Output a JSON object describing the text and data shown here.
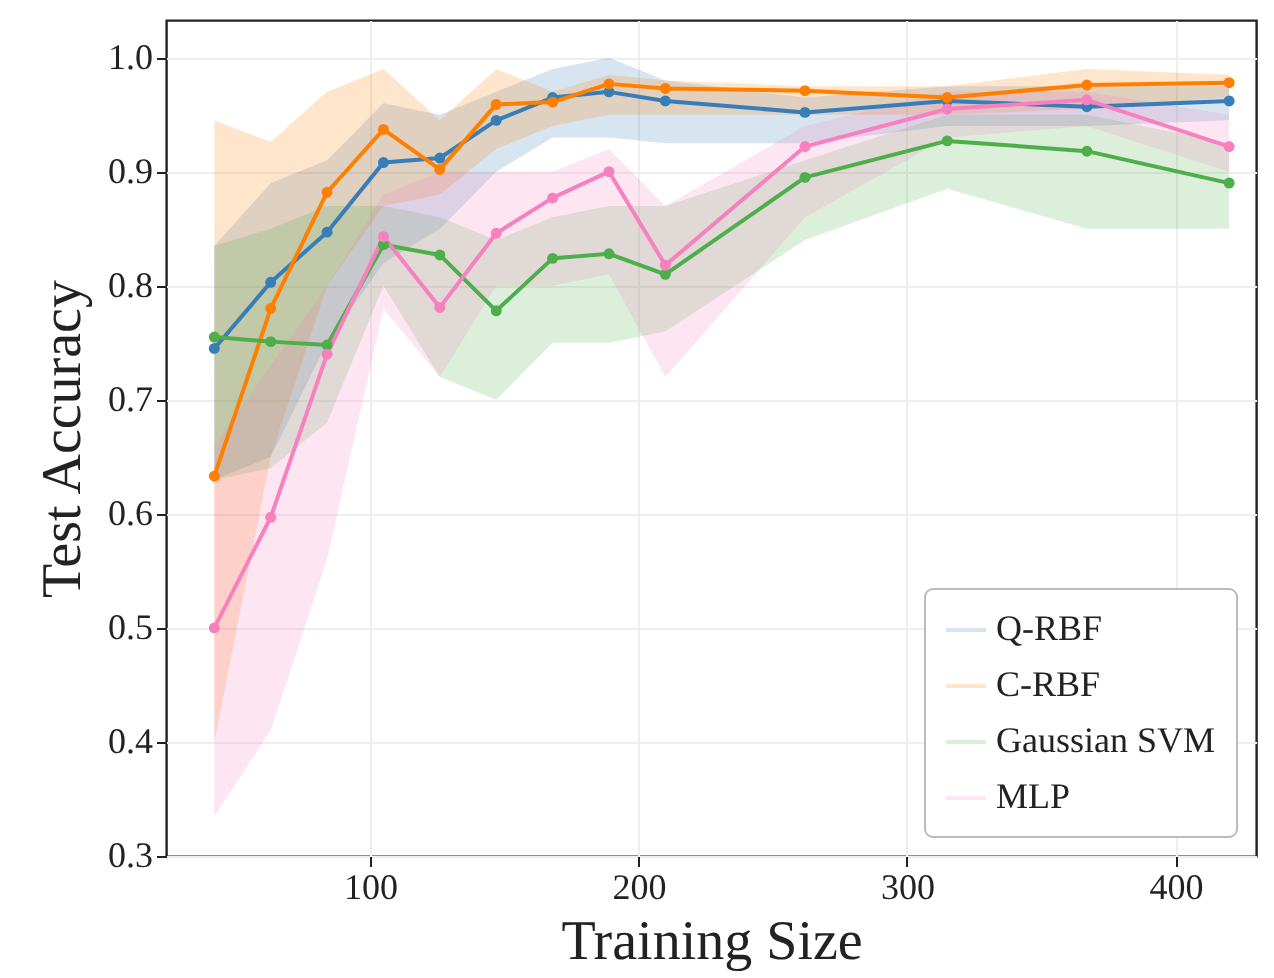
{
  "chart_data": {
    "type": "line",
    "xlabel": "Training Size",
    "ylabel": "Test Accuracy",
    "x": [
      42,
      63,
      84,
      105,
      126,
      147,
      168,
      189,
      210,
      262,
      315,
      367,
      420
    ],
    "series": [
      {
        "name": "Q-RBF",
        "color": "#377eb8",
        "values": [
          0.745,
          0.803,
          0.847,
          0.908,
          0.912,
          0.945,
          0.965,
          0.97,
          0.962,
          0.952,
          0.962,
          0.957,
          0.962
        ],
        "lower": [
          0.63,
          0.65,
          0.75,
          0.82,
          0.85,
          0.9,
          0.93,
          0.93,
          0.925,
          0.925,
          0.94,
          0.94,
          0.945
        ],
        "upper": [
          0.835,
          0.89,
          0.91,
          0.96,
          0.95,
          0.97,
          0.99,
          1.0,
          0.98,
          0.965,
          0.975,
          0.975,
          0.975
        ]
      },
      {
        "name": "C-RBF",
        "color": "#ff7f00",
        "values": [
          0.633,
          0.78,
          0.882,
          0.937,
          0.902,
          0.959,
          0.961,
          0.977,
          0.973,
          0.971,
          0.965,
          0.976,
          0.978
        ],
        "lower": [
          0.4,
          0.65,
          0.8,
          0.87,
          0.88,
          0.92,
          0.94,
          0.95,
          0.95,
          0.95,
          0.95,
          0.955,
          0.965
        ],
        "upper": [
          0.945,
          0.926,
          0.97,
          0.99,
          0.945,
          0.99,
          0.97,
          0.985,
          0.98,
          0.975,
          0.975,
          0.99,
          0.985
        ]
      },
      {
        "name": "Gaussian SVM",
        "color": "#4daf4a",
        "values": [
          0.755,
          0.751,
          0.748,
          0.836,
          0.827,
          0.778,
          0.824,
          0.828,
          0.81,
          0.895,
          0.927,
          0.918,
          0.89
        ],
        "lower": [
          0.63,
          0.64,
          0.68,
          0.8,
          0.72,
          0.7,
          0.75,
          0.75,
          0.76,
          0.84,
          0.885,
          0.85,
          0.85
        ],
        "upper": [
          0.835,
          0.85,
          0.87,
          0.87,
          0.86,
          0.84,
          0.86,
          0.87,
          0.87,
          0.91,
          0.95,
          0.95,
          0.925
        ]
      },
      {
        "name": "MLP",
        "color": "#f781bf",
        "values": [
          0.5,
          0.597,
          0.74,
          0.843,
          0.781,
          0.846,
          0.877,
          0.9,
          0.818,
          0.922,
          0.955,
          0.963,
          0.922
        ],
        "lower": [
          0.335,
          0.41,
          0.56,
          0.78,
          0.72,
          0.8,
          0.8,
          0.81,
          0.72,
          0.86,
          0.93,
          0.94,
          0.9
        ],
        "upper": [
          0.66,
          0.73,
          0.8,
          0.88,
          0.9,
          0.9,
          0.9,
          0.92,
          0.87,
          0.94,
          0.97,
          0.97,
          0.95
        ]
      }
    ],
    "xlim": [
      24,
      430
    ],
    "xticks": [
      100,
      200,
      300,
      400
    ],
    "ylim": [
      0.3,
      1.033
    ],
    "yticks": [
      0.3,
      0.4,
      0.5,
      0.6,
      0.7,
      0.8,
      0.9,
      {
        "value": 1,
        "label": "1.0"
      }
    ],
    "grid": true,
    "legend": "bottom right",
    "marker": "circle",
    "line_style": "solid"
  }
}
